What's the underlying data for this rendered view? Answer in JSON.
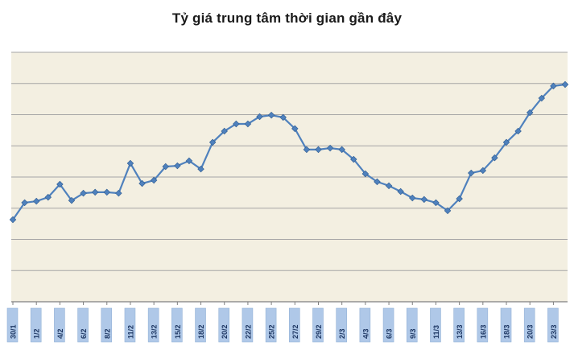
{
  "page": {
    "background_color": "#FFFFFF"
  },
  "chart_data": {
    "type": "line",
    "title": "Tỷ giá trung tâm thời gian gần đây",
    "xlabel": "",
    "ylabel": "",
    "legend": "none",
    "x_tick_labels": [
      "30/1",
      "1/2",
      "4/2",
      "6/2",
      "8/2",
      "11/2",
      "13/2",
      "15/2",
      "18/2",
      "20/2",
      "22/2",
      "25/2",
      "27/2",
      "29/2",
      "2/3",
      "4/3",
      "6/3",
      "9/3",
      "11/3",
      "13/3",
      "16/3",
      "18/3",
      "20/3",
      "23/3"
    ],
    "points_per_label": 2,
    "values": [
      32.9,
      39.7,
      40.3,
      41.9,
      47.1,
      40.6,
      43.5,
      43.9,
      43.9,
      43.5,
      55.5,
      47.4,
      48.7,
      54.2,
      54.5,
      56.5,
      53.2,
      63.9,
      68.4,
      71.3,
      71.3,
      74.2,
      74.8,
      73.9,
      69.4,
      61.0,
      61.0,
      61.6,
      61.0,
      57.1,
      51.3,
      48.1,
      46.5,
      44.2,
      41.6,
      41.0,
      39.7,
      36.5,
      41.3,
      51.6,
      52.6,
      57.7,
      63.9,
      68.4,
      75.8,
      81.6,
      86.5,
      87.1
    ],
    "value_units": "relative scale 0-100 (y-axis has no visible numeric labels in source)",
    "ylim": [
      0,
      100
    ],
    "y_axis": {
      "visible_labels": false,
      "gridline_count": 9,
      "grid_on": true
    },
    "marker": "diamond",
    "style": {
      "line_color": "#4F81BD",
      "marker_color": "#4F81BD",
      "marker_edge": "#2E5B8F",
      "plot_background": "#F3EFE1",
      "gridline_color": "#A6A6A6",
      "axis_color": "#7F7F7F",
      "label_box_fill": "#AFC8E8",
      "label_box_border": "#95B3D7",
      "label_text_color": "#1F3864",
      "title_color": "#1A1A1A"
    }
  }
}
